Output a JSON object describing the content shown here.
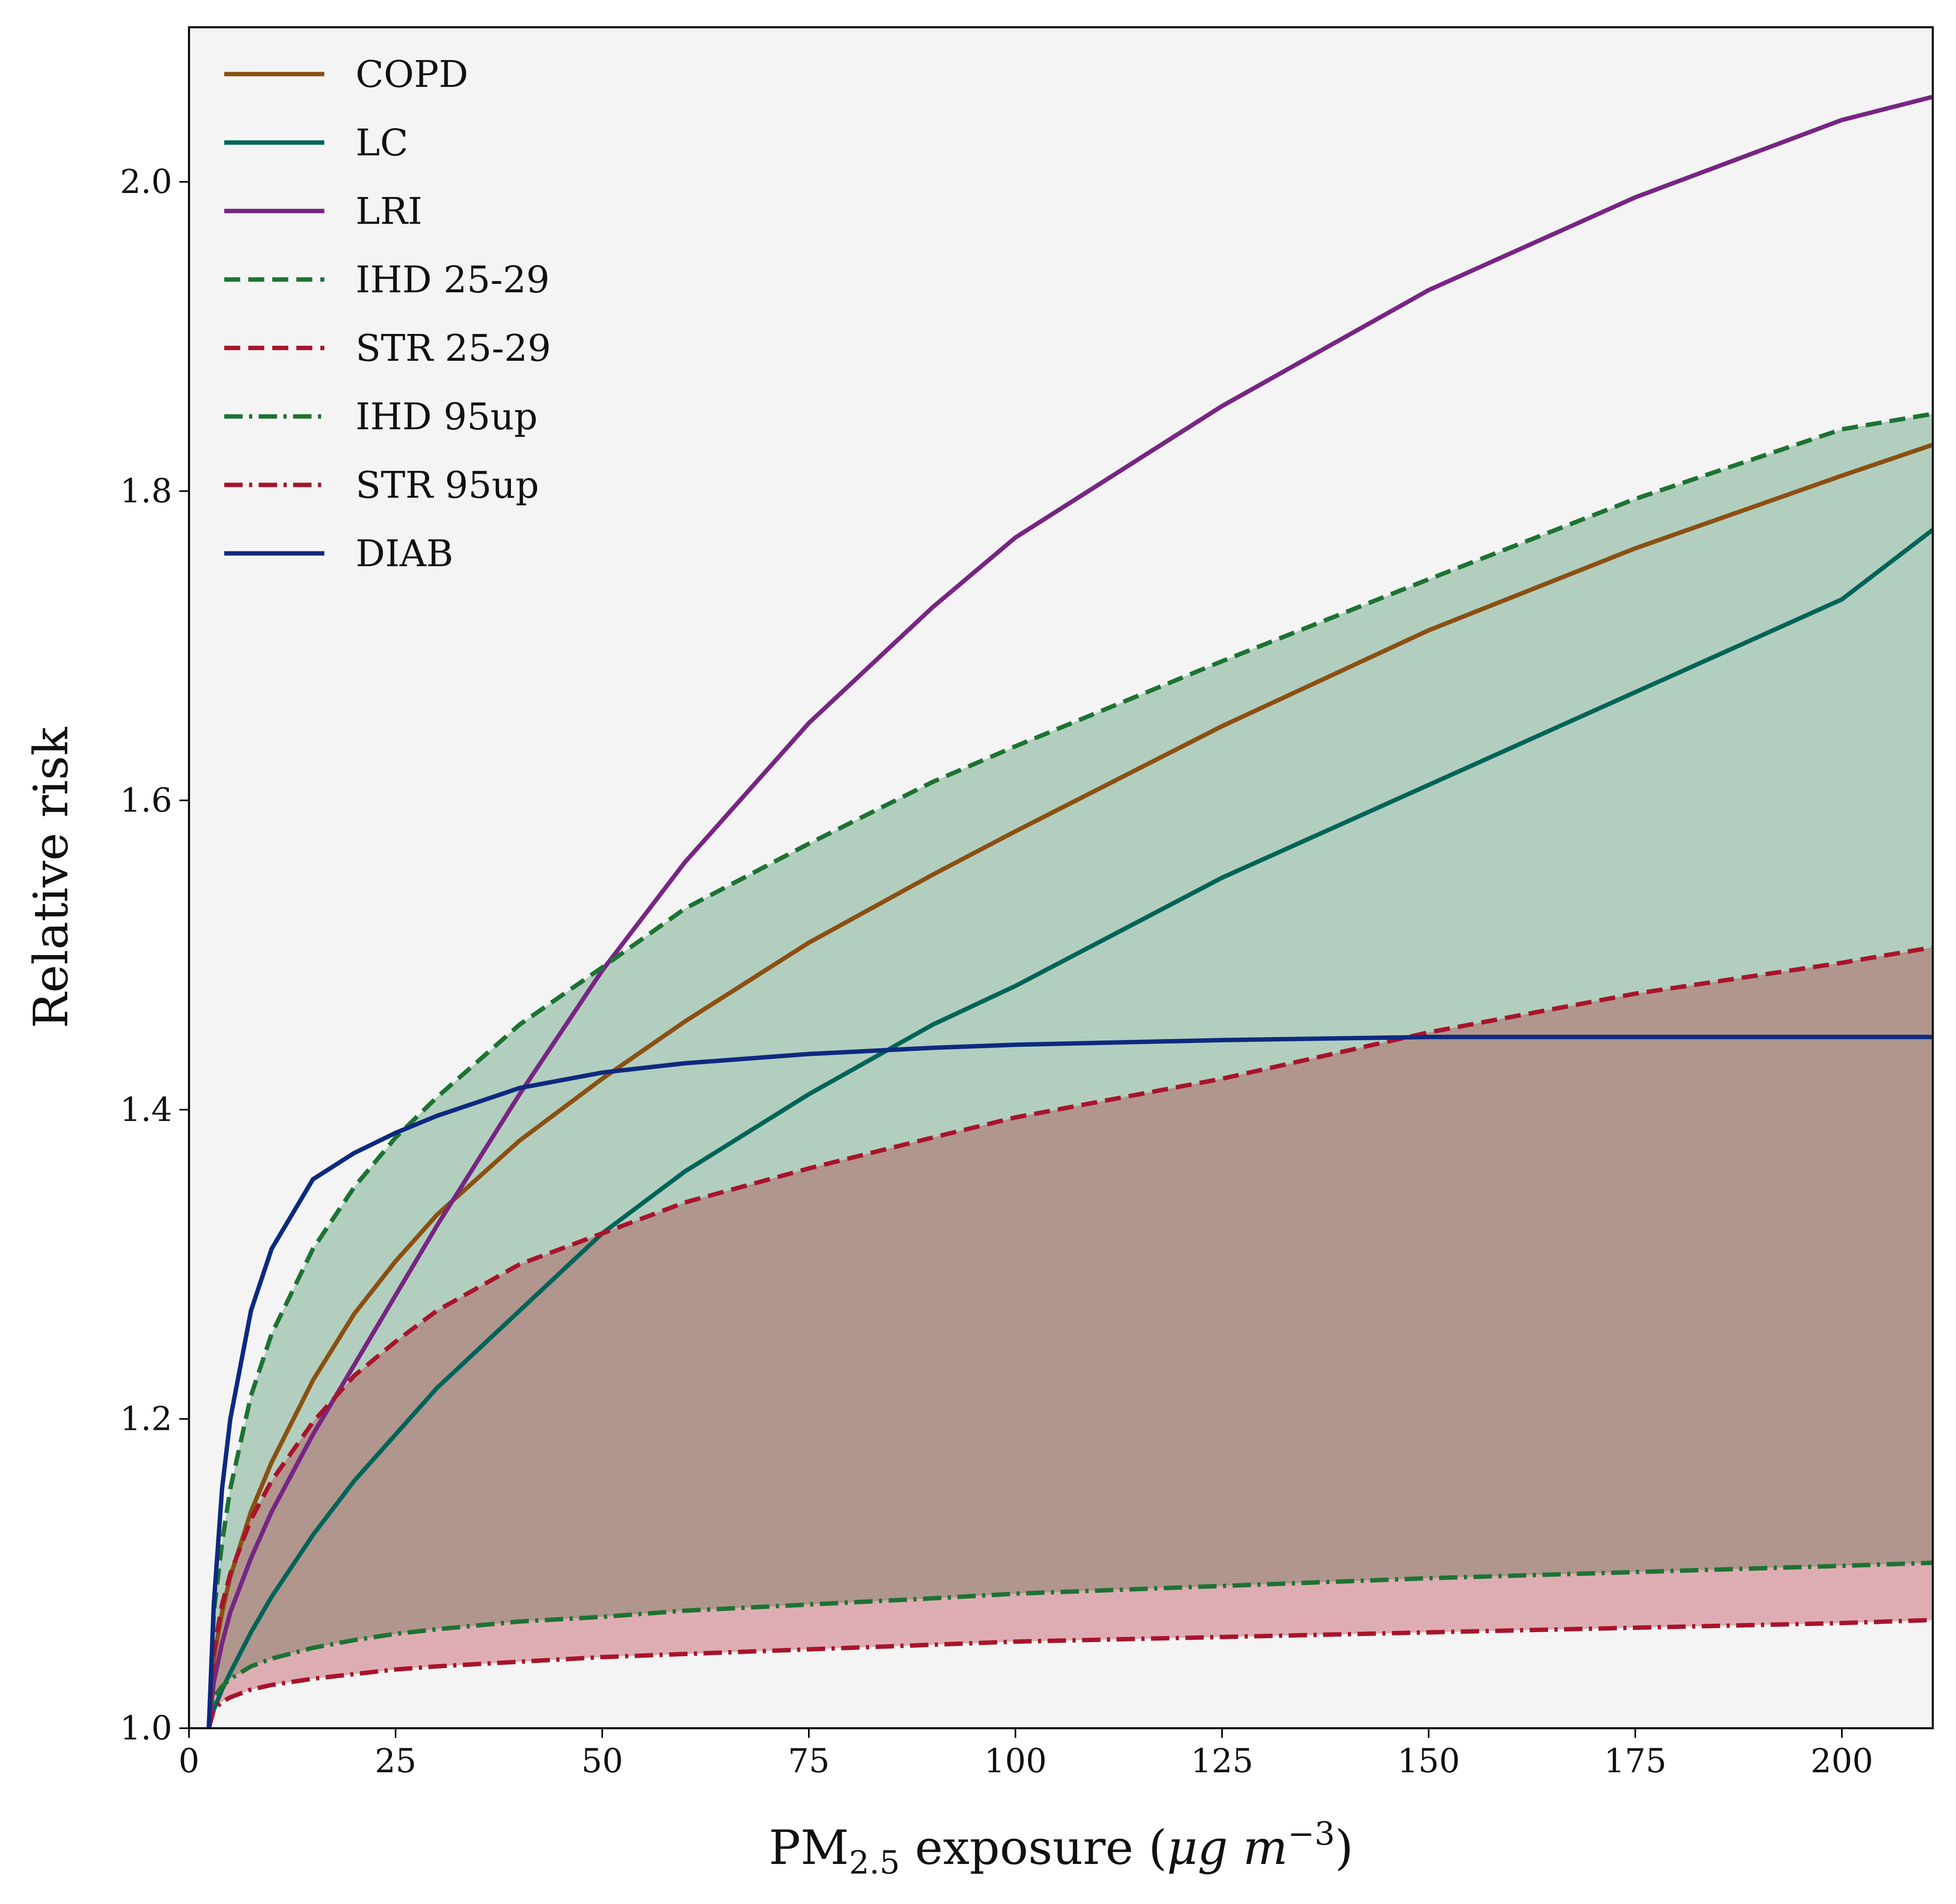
{
  "chart_data": {
    "type": "line",
    "xlabel": "PM",
    "xlabel_sub": "2.5",
    "xlabel_rest": " exposure (",
    "xlabel_unit_mu": "μg",
    "xlabel_unit_m": "m",
    "xlabel_unit_exp": "−3",
    "xlabel_close": ")",
    "ylabel": "Relative risk",
    "xlim": [
      0,
      211
    ],
    "ylim": [
      1.0,
      2.1
    ],
    "xticks": [
      "0",
      "25",
      "50",
      "75",
      "100",
      "125",
      "150",
      "175",
      "200"
    ],
    "yticks": [
      "1.0",
      "1.2",
      "1.4",
      "1.6",
      "1.8",
      "2.0"
    ],
    "grid": false,
    "legend_position": "top-left",
    "background": "#f4f4f4",
    "x": [
      2.4,
      3,
      4,
      5,
      7.5,
      10,
      15,
      20,
      25,
      30,
      40,
      50,
      60,
      75,
      90,
      100,
      125,
      150,
      175,
      200,
      211
    ],
    "series": [
      {
        "name": "COPD",
        "style": "solid",
        "color": "#8b5012",
        "values": [
          1.0,
          1.045,
          1.075,
          1.098,
          1.14,
          1.172,
          1.225,
          1.268,
          1.302,
          1.332,
          1.38,
          1.42,
          1.457,
          1.508,
          1.552,
          1.58,
          1.648,
          1.71,
          1.763,
          1.81,
          1.83
        ]
      },
      {
        "name": "LC",
        "style": "solid",
        "color": "#006458",
        "values": [
          1.0,
          1.012,
          1.025,
          1.036,
          1.062,
          1.085,
          1.125,
          1.16,
          1.19,
          1.22,
          1.27,
          1.32,
          1.36,
          1.41,
          1.455,
          1.48,
          1.55,
          1.61,
          1.67,
          1.73,
          1.775
        ]
      },
      {
        "name": "LRI",
        "style": "solid",
        "color": "#772683",
        "values": [
          1.0,
          1.03,
          1.055,
          1.075,
          1.11,
          1.14,
          1.19,
          1.235,
          1.28,
          1.325,
          1.41,
          1.49,
          1.56,
          1.65,
          1.725,
          1.77,
          1.855,
          1.93,
          1.99,
          2.04,
          2.055
        ]
      },
      {
        "name": "IHD 25-29",
        "style": "dashed",
        "color": "#1d7333",
        "values": [
          1.0,
          1.075,
          1.12,
          1.155,
          1.215,
          1.255,
          1.31,
          1.35,
          1.382,
          1.408,
          1.455,
          1.492,
          1.53,
          1.572,
          1.612,
          1.635,
          1.69,
          1.743,
          1.795,
          1.84,
          1.85
        ]
      },
      {
        "name": "STR 25-29",
        "style": "dashed",
        "color": "#a8142b",
        "values": [
          1.0,
          1.05,
          1.08,
          1.1,
          1.135,
          1.16,
          1.198,
          1.228,
          1.25,
          1.27,
          1.3,
          1.32,
          1.34,
          1.362,
          1.382,
          1.395,
          1.42,
          1.45,
          1.475,
          1.495,
          1.505
        ]
      },
      {
        "name": "IHD 95up",
        "style": "dashdot",
        "color": "#1d7333",
        "values": [
          1.0,
          1.02,
          1.027,
          1.032,
          1.04,
          1.045,
          1.052,
          1.057,
          1.061,
          1.064,
          1.069,
          1.072,
          1.076,
          1.08,
          1.084,
          1.087,
          1.092,
          1.097,
          1.101,
          1.105,
          1.107
        ]
      },
      {
        "name": "STR 95up",
        "style": "dashdot",
        "color": "#a8142b",
        "values": [
          1.0,
          1.012,
          1.017,
          1.02,
          1.025,
          1.028,
          1.032,
          1.035,
          1.038,
          1.04,
          1.043,
          1.046,
          1.048,
          1.051,
          1.054,
          1.056,
          1.059,
          1.062,
          1.065,
          1.068,
          1.07
        ]
      },
      {
        "name": "DIAB",
        "style": "solid",
        "color": "#0d2a80",
        "values": [
          1.0,
          1.08,
          1.155,
          1.2,
          1.27,
          1.31,
          1.355,
          1.372,
          1.385,
          1.396,
          1.414,
          1.424,
          1.43,
          1.436,
          1.44,
          1.442,
          1.445,
          1.447,
          1.447,
          1.447,
          1.447
        ]
      }
    ],
    "bands": [
      {
        "between": [
          "STR 25-29",
          "IHD 25-29"
        ],
        "color": "#b2cebe"
      },
      {
        "between": [
          "IHD 95up",
          "STR 25-29"
        ],
        "color": "#b0968d"
      },
      {
        "between": [
          "STR 95up",
          "IHD 95up"
        ],
        "color": "#deadb3"
      }
    ]
  }
}
